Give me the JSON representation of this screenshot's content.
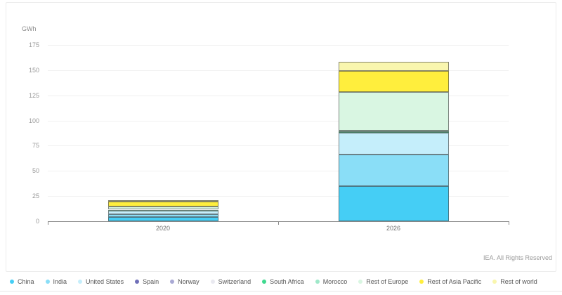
{
  "footer": {
    "copyright": "IEA. All Rights Reserved"
  },
  "chart_data": {
    "type": "bar",
    "stacked": true,
    "title": "",
    "xlabel": "",
    "ylabel": "GWh",
    "ylim": [
      0,
      175
    ],
    "yticks": [
      175,
      150,
      125,
      100,
      75,
      50,
      25,
      0
    ],
    "grid": "horizontal",
    "legend_position": "bottom",
    "categories": [
      "2020",
      "2026"
    ],
    "series": [
      {
        "name": "China",
        "color": "#45cef5",
        "values": [
          4,
          35
        ]
      },
      {
        "name": "India",
        "color": "#8adef7",
        "values": [
          3,
          31
        ]
      },
      {
        "name": "United States",
        "color": "#c5eefb",
        "values": [
          4,
          22
        ]
      },
      {
        "name": "Spain",
        "color": "#6f6fb8",
        "values": [
          0,
          0
        ]
      },
      {
        "name": "Norway",
        "color": "#a9a9d4",
        "values": [
          0,
          0
        ]
      },
      {
        "name": "Switzerland",
        "color": "#e9e9f0",
        "values": [
          0,
          0
        ]
      },
      {
        "name": "South Africa",
        "color": "#3fd98f",
        "values": [
          0,
          1
        ]
      },
      {
        "name": "Morocco",
        "color": "#9fe8c9",
        "values": [
          0.5,
          1
        ]
      },
      {
        "name": "Rest of Europe",
        "color": "#d9f6e2",
        "values": [
          3,
          38
        ]
      },
      {
        "name": "Rest of Asia Pacific",
        "color": "#ffee3d",
        "values": [
          5,
          21
        ]
      },
      {
        "name": "Rest of world",
        "color": "#f9f6ae",
        "values": [
          1.5,
          9
        ]
      }
    ]
  }
}
